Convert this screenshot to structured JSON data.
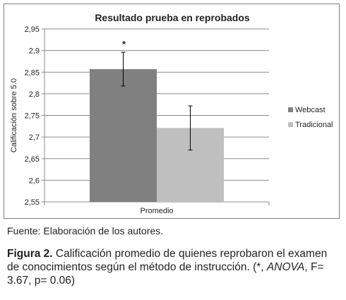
{
  "chart_data": {
    "type": "bar",
    "title": "Resultado prueba en reprobados",
    "ylabel": "Calificación sobre 5.0",
    "categories": [
      "Promedio"
    ],
    "series": [
      {
        "name": "Webcast",
        "values": [
          2.857
        ],
        "error": [
          0.039
        ],
        "color": "#808080"
      },
      {
        "name": "Tradicional",
        "values": [
          2.721
        ],
        "error": [
          0.051
        ],
        "color": "#bfbfbf"
      }
    ],
    "ylim": [
      2.55,
      2.95
    ],
    "yticks": [
      "2,55",
      "2,6",
      "2,65",
      "2,7",
      "2,75",
      "2,8",
      "2,85",
      "2,9",
      "2,95"
    ],
    "significance_marker": "*",
    "grid": true,
    "legend_position": "right"
  },
  "source_note": "Fuente: Elaboración de los autores.",
  "caption": {
    "label": "Figura 2.",
    "text": " Calificación promedio de quienes reprobaron el examen de conocimientos según el método de instrucción. (*, ",
    "stat_name": "ANOVA",
    "stat_values": ", F= 3.67, p= 0.06)"
  }
}
